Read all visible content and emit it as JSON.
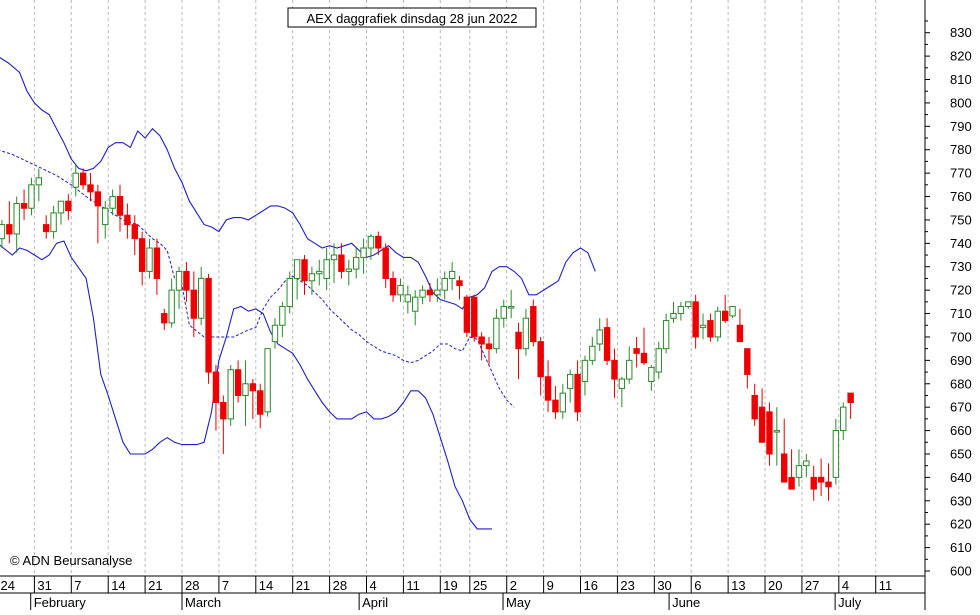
{
  "chart_data": {
    "type": "candlestick",
    "title": "AEX daggrafiek dinsdag 28 jun 2022",
    "copyright": "© ADN Beursanalyse",
    "ylim": [
      600,
      835
    ],
    "y_ticks": [
      600,
      610,
      620,
      630,
      640,
      650,
      660,
      670,
      680,
      690,
      700,
      710,
      720,
      730,
      740,
      750,
      760,
      770,
      780,
      790,
      800,
      810,
      820,
      830
    ],
    "x_ticks": [
      {
        "i": 0,
        "label": "24"
      },
      {
        "i": 5,
        "label": "31"
      },
      {
        "i": 10,
        "label": "7"
      },
      {
        "i": 15,
        "label": "14"
      },
      {
        "i": 20,
        "label": "21"
      },
      {
        "i": 25,
        "label": "28"
      },
      {
        "i": 30,
        "label": "7"
      },
      {
        "i": 35,
        "label": "14"
      },
      {
        "i": 40,
        "label": "21"
      },
      {
        "i": 45,
        "label": "28"
      },
      {
        "i": 50,
        "label": "4"
      },
      {
        "i": 55,
        "label": "11"
      },
      {
        "i": 60,
        "label": "19"
      },
      {
        "i": 64,
        "label": "25"
      },
      {
        "i": 69,
        "label": "2"
      },
      {
        "i": 74,
        "label": "9"
      },
      {
        "i": 79,
        "label": "16"
      },
      {
        "i": 84,
        "label": "23"
      },
      {
        "i": 89,
        "label": "30"
      },
      {
        "i": 94,
        "label": "6"
      },
      {
        "i": 99,
        "label": "13"
      },
      {
        "i": 104,
        "label": "20"
      },
      {
        "i": 109,
        "label": "27"
      },
      {
        "i": 114,
        "label": "4"
      },
      {
        "i": 119,
        "label": "11"
      }
    ],
    "months": [
      {
        "i": 4.5,
        "label": "February"
      },
      {
        "i": 25,
        "label": "March"
      },
      {
        "i": 49,
        "label": "April"
      },
      {
        "i": 68.5,
        "label": "May"
      },
      {
        "i": 91,
        "label": "June"
      },
      {
        "i": 113.5,
        "label": "July"
      }
    ],
    "candles": [
      [
        742,
        750,
        738,
        748
      ],
      [
        748,
        758,
        740,
        744
      ],
      [
        744,
        760,
        736,
        757
      ],
      [
        757,
        763,
        750,
        755
      ],
      [
        755,
        768,
        752,
        765
      ],
      [
        765,
        772,
        758,
        768
      ],
      [
        748,
        752,
        742,
        745
      ],
      [
        745,
        756,
        742,
        753
      ],
      [
        753,
        758,
        748,
        758
      ],
      [
        758,
        761,
        750,
        754
      ],
      [
        764,
        774,
        760,
        770
      ],
      [
        770,
        772,
        763,
        765
      ],
      [
        765,
        770,
        758,
        762
      ],
      [
        762,
        765,
        740,
        756
      ],
      [
        748,
        758,
        742,
        755
      ],
      [
        755,
        763,
        752,
        760
      ],
      [
        760,
        765,
        745,
        752
      ],
      [
        752,
        757,
        742,
        748
      ],
      [
        748,
        752,
        735,
        742
      ],
      [
        742,
        745,
        722,
        728
      ],
      [
        728,
        742,
        725,
        738
      ],
      [
        738,
        742,
        718,
        725
      ],
      [
        710,
        712,
        703,
        706
      ],
      [
        706,
        725,
        704,
        720
      ],
      [
        720,
        730,
        712,
        728
      ],
      [
        728,
        732,
        715,
        720
      ],
      [
        720,
        728,
        700,
        708
      ],
      [
        708,
        730,
        705,
        725
      ],
      [
        725,
        727,
        680,
        685
      ],
      [
        685,
        688,
        660,
        672
      ],
      [
        672,
        675,
        650,
        665
      ],
      [
        665,
        688,
        662,
        686
      ],
      [
        686,
        690,
        672,
        675
      ],
      [
        675,
        690,
        662,
        680
      ],
      [
        680,
        682,
        665,
        677
      ],
      [
        677,
        680,
        661,
        667
      ],
      [
        668,
        695,
        666,
        695
      ],
      [
        698,
        708,
        695,
        705
      ],
      [
        705,
        715,
        700,
        713
      ],
      [
        713,
        728,
        710,
        725
      ],
      [
        725,
        733,
        716,
        733
      ],
      [
        733,
        735,
        718,
        724
      ],
      [
        724,
        730,
        718,
        727
      ],
      [
        727,
        733,
        722,
        728
      ],
      [
        725,
        738,
        720,
        733
      ],
      [
        733,
        740,
        723,
        735
      ],
      [
        735,
        740,
        725,
        728
      ],
      [
        728,
        733,
        722,
        729
      ],
      [
        729,
        738,
        725,
        734
      ],
      [
        734,
        742,
        727,
        738
      ],
      [
        738,
        744,
        733,
        743
      ],
      [
        743,
        745,
        735,
        738
      ],
      [
        738,
        740,
        721,
        725
      ],
      [
        725,
        728,
        715,
        718
      ],
      [
        718,
        725,
        715,
        722
      ],
      [
        715,
        722,
        710,
        718
      ],
      [
        711,
        720,
        705,
        717
      ],
      [
        717,
        722,
        714,
        720
      ],
      [
        720,
        723,
        715,
        718
      ],
      [
        718,
        725,
        715,
        720
      ],
      [
        720,
        728,
        716,
        725
      ],
      [
        725,
        732,
        720,
        728
      ],
      [
        724,
        726,
        716,
        722
      ],
      [
        717,
        718,
        700,
        702
      ],
      [
        717,
        718,
        698,
        700
      ],
      [
        700,
        702,
        690,
        697
      ],
      [
        697,
        700,
        688,
        695
      ],
      [
        695,
        712,
        693,
        708
      ],
      [
        708,
        716,
        704,
        713
      ],
      [
        713,
        720,
        708,
        713
      ],
      [
        702,
        706,
        682,
        695
      ],
      [
        695,
        712,
        692,
        708
      ],
      [
        713,
        716,
        696,
        698
      ],
      [
        698,
        700,
        675,
        683
      ],
      [
        683,
        690,
        668,
        673
      ],
      [
        673,
        679,
        665,
        668
      ],
      [
        668,
        680,
        665,
        676
      ],
      [
        678,
        686,
        672,
        684
      ],
      [
        684,
        690,
        664,
        668
      ],
      [
        681,
        692,
        675,
        690
      ],
      [
        690,
        700,
        688,
        696
      ],
      [
        697,
        708,
        694,
        703
      ],
      [
        704,
        708,
        688,
        690
      ],
      [
        690,
        695,
        674,
        682
      ],
      [
        678,
        683,
        670,
        682
      ],
      [
        682,
        696,
        680,
        690
      ],
      [
        695,
        700,
        687,
        693
      ],
      [
        693,
        704,
        688,
        689
      ],
      [
        681,
        688,
        677,
        687
      ],
      [
        685,
        698,
        682,
        695
      ],
      [
        695,
        710,
        693,
        707
      ],
      [
        708,
        715,
        706,
        710
      ],
      [
        710,
        715,
        707,
        713
      ],
      [
        713,
        715,
        712,
        715
      ],
      [
        715,
        718,
        695,
        700
      ],
      [
        704,
        710,
        699,
        705
      ],
      [
        707,
        710,
        698,
        700
      ],
      [
        700,
        713,
        698,
        711
      ],
      [
        711,
        718,
        706,
        707
      ],
      [
        709,
        713,
        708,
        713
      ],
      [
        705,
        712,
        698,
        698
      ],
      [
        695,
        694,
        678,
        684
      ],
      [
        675,
        680,
        662,
        665
      ],
      [
        670,
        678,
        655,
        655
      ],
      [
        668,
        672,
        645,
        650
      ],
      [
        660,
        670,
        645,
        660
      ],
      [
        650,
        665,
        640,
        638
      ],
      [
        640,
        652,
        636,
        635
      ],
      [
        640,
        652,
        636,
        645
      ],
      [
        645,
        650,
        640,
        647
      ],
      [
        640,
        645,
        630,
        635
      ],
      [
        640,
        648,
        632,
        638
      ],
      [
        638,
        646,
        630,
        636
      ],
      [
        640,
        665,
        637,
        660
      ],
      [
        660,
        672,
        656,
        670
      ],
      [
        676,
        676,
        665,
        672
      ]
    ],
    "upper_band": [
      [
        0,
        820
      ],
      [
        3,
        817
      ],
      [
        6,
        813
      ],
      [
        8,
        805
      ],
      [
        10,
        800
      ],
      [
        12,
        797
      ],
      [
        14,
        795
      ],
      [
        16,
        789
      ],
      [
        18,
        783
      ],
      [
        20,
        776
      ],
      [
        22,
        772
      ],
      [
        24,
        771
      ],
      [
        26,
        772
      ],
      [
        28,
        775
      ],
      [
        30,
        781
      ],
      [
        32,
        783
      ],
      [
        34,
        783
      ],
      [
        36,
        781
      ],
      [
        38,
        788
      ],
      [
        40,
        785
      ],
      [
        42,
        789
      ],
      [
        44,
        786
      ],
      [
        46,
        780
      ],
      [
        48,
        772
      ],
      [
        50,
        766
      ],
      [
        52,
        758
      ],
      [
        54,
        753
      ],
      [
        56,
        748
      ],
      [
        58,
        747
      ],
      [
        60,
        745
      ],
      [
        62,
        750
      ],
      [
        64,
        751
      ],
      [
        66,
        751
      ],
      [
        68,
        750
      ],
      [
        70,
        752
      ],
      [
        72,
        754
      ],
      [
        74,
        756
      ],
      [
        76,
        756
      ],
      [
        78,
        755
      ],
      [
        80,
        753
      ],
      [
        82,
        748
      ],
      [
        84,
        742
      ],
      [
        86,
        740
      ],
      [
        88,
        738
      ],
      [
        90,
        739
      ],
      [
        92,
        738
      ],
      [
        94,
        739
      ],
      [
        96,
        740
      ],
      [
        98,
        737
      ],
      [
        100,
        734
      ],
      [
        102,
        735
      ],
      [
        104,
        737
      ],
      [
        106,
        739
      ],
      [
        108,
        736
      ],
      [
        110,
        734
      ],
      [
        112,
        734
      ],
      [
        114,
        732
      ],
      [
        116,
        726
      ],
      [
        118,
        719
      ],
      [
        120,
        716
      ],
      [
        122,
        715
      ],
      [
        124,
        714
      ],
      [
        126,
        712
      ],
      [
        128,
        717
      ],
      [
        130,
        718
      ],
      [
        132,
        721
      ],
      [
        134,
        728
      ],
      [
        136,
        730
      ],
      [
        138,
        730
      ],
      [
        140,
        728
      ],
      [
        142,
        725
      ],
      [
        144,
        718
      ],
      [
        146,
        718
      ],
      [
        148,
        720
      ],
      [
        150,
        722
      ],
      [
        152,
        724
      ],
      [
        154,
        732
      ],
      [
        156,
        736
      ],
      [
        158,
        738
      ],
      [
        160,
        736
      ],
      [
        162,
        728
      ]
    ],
    "middle_band": [
      [
        0,
        780
      ],
      [
        4,
        778
      ],
      [
        8,
        775
      ],
      [
        12,
        772
      ],
      [
        16,
        769
      ],
      [
        20,
        765
      ],
      [
        24,
        760
      ],
      [
        28,
        756
      ],
      [
        30,
        754
      ],
      [
        34,
        750
      ],
      [
        38,
        748
      ],
      [
        42,
        742
      ],
      [
        44,
        740
      ],
      [
        46,
        737
      ],
      [
        48,
        725
      ],
      [
        50,
        722
      ],
      [
        52,
        705
      ],
      [
        56,
        700
      ],
      [
        60,
        700
      ],
      [
        64,
        700
      ],
      [
        68,
        703
      ],
      [
        70,
        704
      ],
      [
        72,
        712
      ],
      [
        74,
        717
      ],
      [
        76,
        720
      ],
      [
        78,
        724
      ],
      [
        80,
        726
      ],
      [
        82,
        724
      ],
      [
        84,
        722
      ],
      [
        86,
        719
      ],
      [
        88,
        716
      ],
      [
        90,
        712
      ],
      [
        92,
        709
      ],
      [
        94,
        706
      ],
      [
        96,
        703
      ],
      [
        98,
        701
      ],
      [
        100,
        698
      ],
      [
        102,
        696
      ],
      [
        104,
        694
      ],
      [
        106,
        693
      ],
      [
        108,
        692
      ],
      [
        110,
        690
      ],
      [
        112,
        689
      ],
      [
        114,
        690
      ],
      [
        116,
        692
      ],
      [
        118,
        694
      ],
      [
        120,
        697
      ],
      [
        122,
        697
      ],
      [
        124,
        695
      ],
      [
        126,
        694
      ],
      [
        128,
        700
      ],
      [
        130,
        699
      ],
      [
        132,
        692
      ],
      [
        134,
        685
      ],
      [
        136,
        678
      ],
      [
        138,
        673
      ],
      [
        140,
        670
      ]
    ],
    "lower_band": [
      [
        0,
        740
      ],
      [
        4,
        735
      ],
      [
        6,
        738
      ],
      [
        8,
        737
      ],
      [
        10,
        735
      ],
      [
        12,
        733
      ],
      [
        14,
        735
      ],
      [
        16,
        740
      ],
      [
        18,
        741
      ],
      [
        20,
        734
      ],
      [
        24,
        725
      ],
      [
        26,
        708
      ],
      [
        28,
        684
      ],
      [
        30,
        675
      ],
      [
        32,
        665
      ],
      [
        34,
        655
      ],
      [
        36,
        650
      ],
      [
        38,
        650
      ],
      [
        40,
        650
      ],
      [
        42,
        652
      ],
      [
        44,
        655
      ],
      [
        46,
        657
      ],
      [
        48,
        655
      ],
      [
        50,
        654
      ],
      [
        52,
        654
      ],
      [
        54,
        654
      ],
      [
        56,
        655
      ],
      [
        58,
        668
      ],
      [
        60,
        690
      ],
      [
        62,
        700
      ],
      [
        64,
        712
      ],
      [
        66,
        713
      ],
      [
        68,
        711
      ],
      [
        70,
        712
      ],
      [
        72,
        710
      ],
      [
        74,
        702
      ],
      [
        76,
        697
      ],
      [
        78,
        695
      ],
      [
        80,
        693
      ],
      [
        82,
        688
      ],
      [
        84,
        682
      ],
      [
        86,
        677
      ],
      [
        88,
        672
      ],
      [
        90,
        668
      ],
      [
        92,
        665
      ],
      [
        94,
        665
      ],
      [
        96,
        665
      ],
      [
        98,
        667
      ],
      [
        100,
        668
      ],
      [
        102,
        665
      ],
      [
        104,
        665
      ],
      [
        106,
        666
      ],
      [
        108,
        668
      ],
      [
        110,
        672
      ],
      [
        112,
        677
      ],
      [
        114,
        677
      ],
      [
        116,
        674
      ],
      [
        118,
        667
      ],
      [
        120,
        657
      ],
      [
        122,
        647
      ],
      [
        124,
        636
      ],
      [
        126,
        630
      ],
      [
        128,
        622
      ],
      [
        130,
        618
      ],
      [
        132,
        618
      ],
      [
        134,
        618
      ]
    ]
  }
}
